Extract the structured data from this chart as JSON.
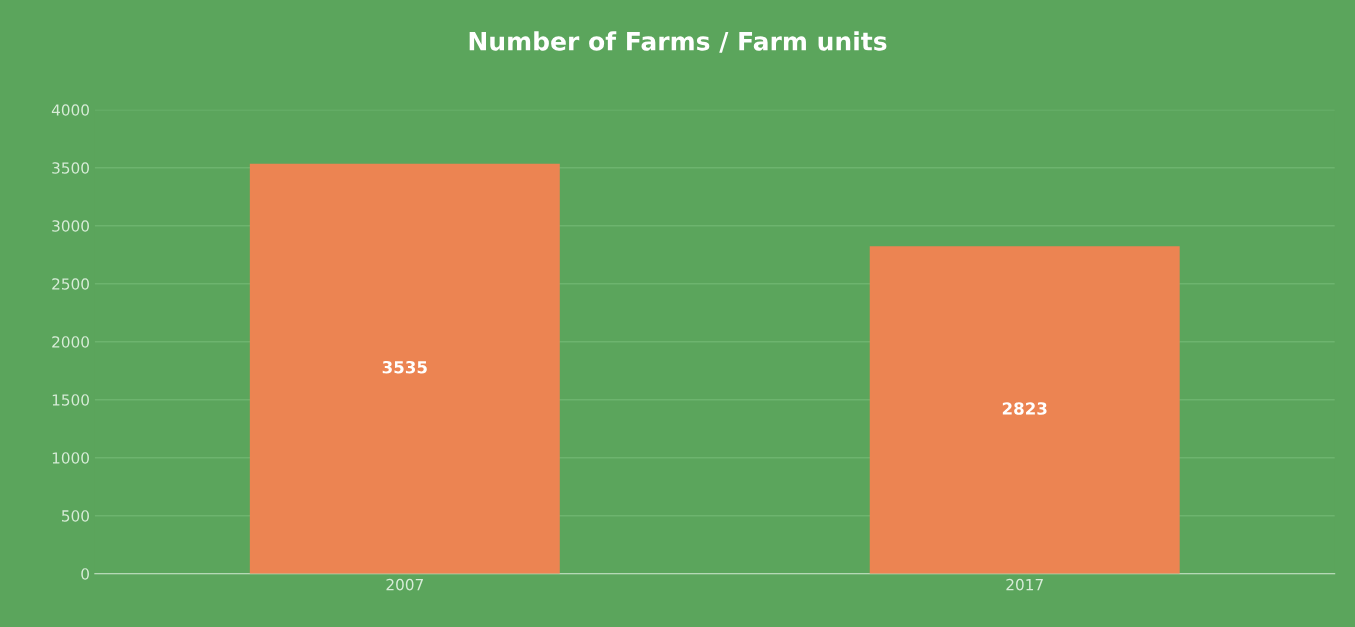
{
  "chart_data": {
    "type": "bar",
    "title": "Number of Farms / Farm units",
    "categories": [
      "2007",
      "2017"
    ],
    "values": [
      3535,
      2823
    ],
    "color": "#ec8452",
    "ylim": [
      0,
      4000
    ],
    "yticks": [
      0,
      500,
      1000,
      1500,
      2000,
      2500,
      3000,
      3500,
      4000
    ],
    "grid": "y",
    "data_labels": true
  }
}
